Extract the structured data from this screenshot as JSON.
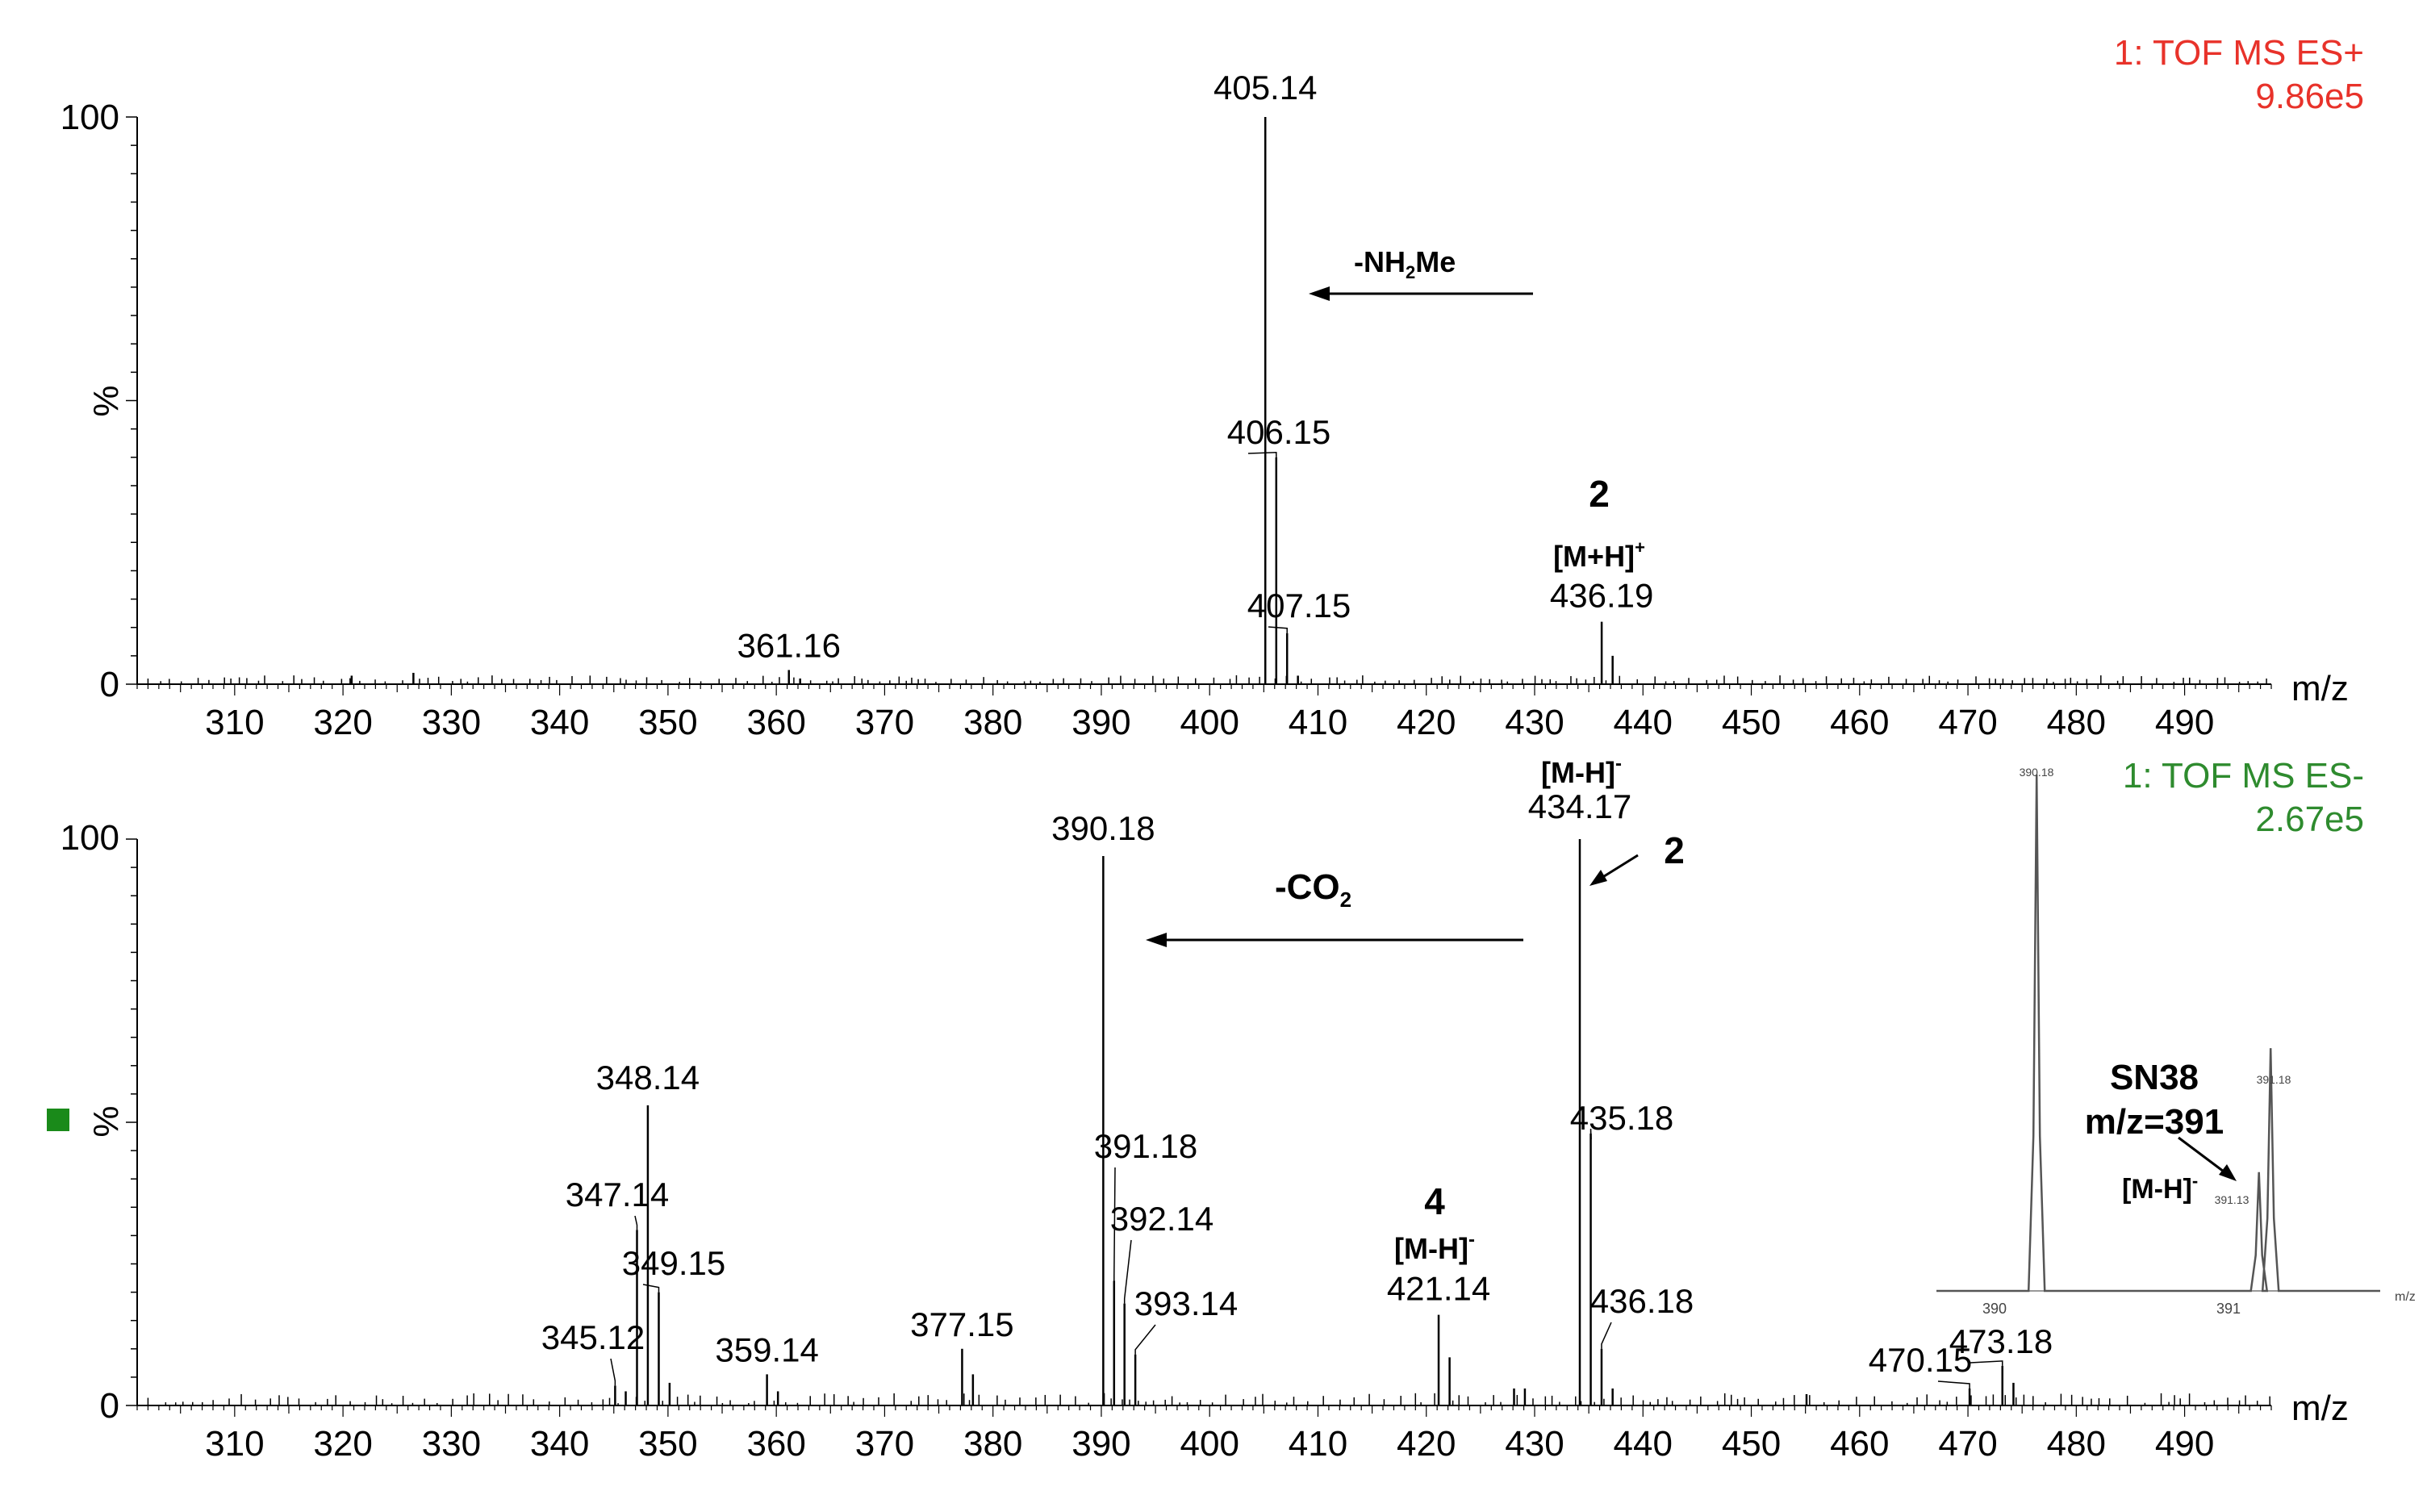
{
  "chart_data": [
    {
      "type": "bar",
      "mode_label": "1: TOF MS ES+",
      "intensity_label": "9.86e5",
      "mode_color": "#e8322a",
      "xlabel": "m/z",
      "ylabel": "%",
      "xlim": [
        301,
        498
      ],
      "ylim": [
        0,
        100
      ],
      "x_ticks": [
        310,
        320,
        330,
        340,
        350,
        360,
        370,
        380,
        390,
        400,
        410,
        420,
        430,
        440,
        450,
        460,
        470,
        480,
        490
      ],
      "y_ticks": [
        0,
        100
      ],
      "peaks": [
        {
          "mz": 405.14,
          "intensity": 100,
          "label": "405.14"
        },
        {
          "mz": 406.15,
          "intensity": 40,
          "label": "406.15"
        },
        {
          "mz": 407.15,
          "intensity": 9,
          "label": "407.15"
        },
        {
          "mz": 436.19,
          "intensity": 11,
          "label": "436.19"
        },
        {
          "mz": 361.16,
          "intensity": 2.5,
          "label": "361.16"
        },
        {
          "mz": 437.2,
          "intensity": 5
        },
        {
          "mz": 408.15,
          "intensity": 1.5
        },
        {
          "mz": 320.8,
          "intensity": 1.5
        },
        {
          "mz": 326.5,
          "intensity": 2
        },
        {
          "mz": 362.2,
          "intensity": 1
        }
      ],
      "annotations": {
        "compound_id": "2",
        "ion": "[M+H]",
        "ion_sup": "+",
        "loss": "-NH",
        "loss_sub": "2",
        "loss_tail": "Me"
      }
    },
    {
      "type": "bar",
      "mode_label": "1: TOF MS ES-",
      "intensity_label": "2.67e5",
      "mode_color": "#2e8b2e",
      "xlabel": "m/z",
      "ylabel": "%",
      "xlim": [
        301,
        498
      ],
      "ylim": [
        0,
        100
      ],
      "x_ticks": [
        310,
        320,
        330,
        340,
        350,
        360,
        370,
        380,
        390,
        400,
        410,
        420,
        430,
        440,
        450,
        460,
        470,
        480,
        490
      ],
      "y_ticks": [
        0,
        100
      ],
      "peaks": [
        {
          "mz": 434.17,
          "intensity": 100,
          "label": "434.17"
        },
        {
          "mz": 390.18,
          "intensity": 97,
          "label": "390.18"
        },
        {
          "mz": 348.14,
          "intensity": 53,
          "label": "348.14"
        },
        {
          "mz": 435.18,
          "intensity": 48,
          "label": "435.18"
        },
        {
          "mz": 347.14,
          "intensity": 31,
          "label": "347.14"
        },
        {
          "mz": 391.18,
          "intensity": 22,
          "label": "391.18"
        },
        {
          "mz": 349.15,
          "intensity": 20,
          "label": "349.15"
        },
        {
          "mz": 392.14,
          "intensity": 18,
          "label": "392.14"
        },
        {
          "mz": 421.14,
          "intensity": 16,
          "label": "421.14"
        },
        {
          "mz": 436.18,
          "intensity": 10,
          "label": "436.18"
        },
        {
          "mz": 393.14,
          "intensity": 9,
          "label": "393.14"
        },
        {
          "mz": 377.15,
          "intensity": 10,
          "label": "377.15"
        },
        {
          "mz": 345.12,
          "intensity": 3.5,
          "label": "345.12"
        },
        {
          "mz": 359.14,
          "intensity": 5.5,
          "label": "359.14"
        },
        {
          "mz": 470.15,
          "intensity": 3,
          "label": "470.15"
        },
        {
          "mz": 473.18,
          "intensity": 7,
          "label": "473.18"
        },
        {
          "mz": 422.15,
          "intensity": 8.5
        },
        {
          "mz": 378.15,
          "intensity": 5.5
        },
        {
          "mz": 350.15,
          "intensity": 4
        },
        {
          "mz": 474.2,
          "intensity": 4
        },
        {
          "mz": 360.15,
          "intensity": 2.5
        },
        {
          "mz": 437.2,
          "intensity": 3
        },
        {
          "mz": 346.1,
          "intensity": 2.5
        },
        {
          "mz": 455.1,
          "intensity": 2
        },
        {
          "mz": 428.1,
          "intensity": 3
        },
        {
          "mz": 429.1,
          "intensity": 3
        }
      ],
      "annotations": {
        "compound_id_main": "2",
        "ion_main": "[M-H]",
        "ion_main_sup": "-",
        "compound_id_4": "4",
        "ion_4": "[M-H]",
        "ion_4_sup": "-",
        "loss": "-CO",
        "loss_sub": "2",
        "legend_marker_color": "#1a8a1a"
      },
      "inset": {
        "type": "line",
        "x_ticks": [
          390,
          391
        ],
        "xlabel": "m/z",
        "peaks": [
          {
            "mz": 390.18,
            "intensity": 100,
            "label": "390.18"
          },
          {
            "mz": 391.13,
            "intensity": 23,
            "label": "391.13"
          },
          {
            "mz": 391.18,
            "intensity": 47,
            "label": "391.18"
          }
        ],
        "title_line1": "SN38",
        "title_line2": "m/z=391",
        "ion": "[M-H]",
        "ion_sup": "-"
      }
    }
  ]
}
